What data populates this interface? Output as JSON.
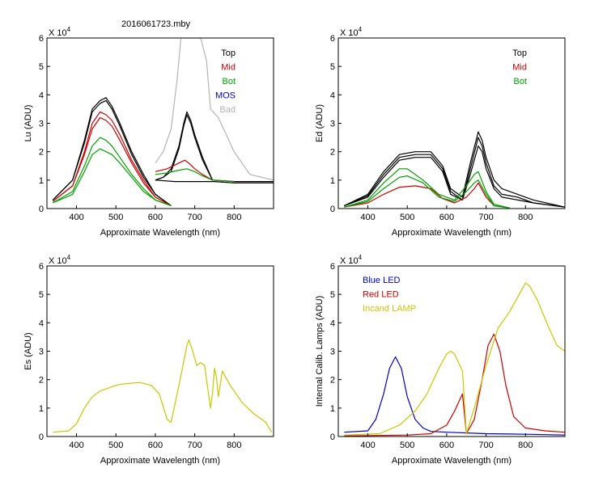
{
  "figure": {
    "title": "2016061723.mby"
  },
  "chart_data": [
    {
      "id": "lu",
      "type": "line",
      "title": "2016061723.mby",
      "xlabel": "Approximate Wavelength (nm)",
      "ylabel": "Lu (ADU)",
      "xlim": [
        325,
        900
      ],
      "ylim": [
        0,
        6
      ],
      "xticks": [
        400,
        500,
        600,
        700,
        800
      ],
      "yticks": [
        0,
        1,
        2,
        3,
        4,
        5,
        6
      ],
      "y_exponent": "X 10",
      "y_exponent_power": "4",
      "legend": [
        {
          "label": "Top",
          "color": "#000000"
        },
        {
          "label": "Mid",
          "color": "#cc0000"
        },
        {
          "label": "Bot",
          "color": "#00a000"
        },
        {
          "label": "MOS",
          "color": "#0000c0"
        },
        {
          "label": "Bad",
          "color": "#b4b4b4"
        }
      ],
      "series": [
        {
          "name": "Top 1",
          "color": "#000000",
          "x": [
            340,
            390,
            420,
            440,
            460,
            475,
            490,
            510,
            540,
            570,
            600,
            640
          ],
          "y": [
            0.3,
            1.0,
            2.4,
            3.5,
            3.8,
            3.9,
            3.6,
            3.0,
            2.0,
            1.2,
            0.5,
            0.1
          ]
        },
        {
          "name": "Top 2",
          "color": "#000000",
          "x": [
            340,
            390,
            420,
            440,
            460,
            475,
            490,
            510,
            540,
            570,
            600,
            640
          ],
          "y": [
            0.3,
            1.0,
            2.3,
            3.4,
            3.7,
            3.8,
            3.5,
            2.9,
            1.9,
            1.1,
            0.5,
            0.1
          ]
        },
        {
          "name": "Top 3",
          "color": "#000000",
          "x": [
            600,
            620,
            640,
            660,
            672,
            680,
            690,
            700,
            720,
            745,
            800,
            900
          ],
          "y": [
            1.0,
            1.1,
            1.4,
            2.2,
            3.0,
            3.4,
            3.1,
            2.6,
            1.8,
            1.0,
            0.95,
            0.95
          ]
        },
        {
          "name": "Top 4",
          "color": "#000000",
          "x": [
            600,
            620,
            640,
            660,
            672,
            680,
            690,
            700,
            720,
            745,
            800,
            900
          ],
          "y": [
            1.0,
            1.1,
            1.3,
            2.1,
            2.9,
            3.3,
            3.0,
            2.5,
            1.7,
            1.0,
            0.95,
            0.95
          ]
        },
        {
          "name": "Top 5",
          "color": "#000000",
          "x": [
            600,
            650,
            700,
            750,
            800,
            850,
            900
          ],
          "y": [
            1.0,
            0.95,
            0.95,
            0.95,
            0.9,
            0.9,
            0.9
          ]
        },
        {
          "name": "Mid 1",
          "color": "#cc0000",
          "x": [
            340,
            390,
            420,
            440,
            460,
            475,
            490,
            510,
            540,
            570,
            600,
            640
          ],
          "y": [
            0.25,
            0.8,
            2.0,
            3.0,
            3.4,
            3.3,
            3.1,
            2.6,
            1.7,
            1.0,
            0.4,
            0.1
          ]
        },
        {
          "name": "Mid 2",
          "color": "#cc0000",
          "x": [
            340,
            390,
            420,
            440,
            460,
            475,
            490,
            510,
            540,
            570,
            600,
            640
          ],
          "y": [
            0.25,
            0.8,
            1.9,
            2.8,
            3.2,
            3.1,
            2.9,
            2.4,
            1.6,
            0.9,
            0.4,
            0.1
          ]
        },
        {
          "name": "Mid 3",
          "color": "#cc0000",
          "x": [
            600,
            630,
            660,
            675,
            685,
            700,
            720,
            745,
            800
          ],
          "y": [
            1.3,
            1.4,
            1.6,
            1.7,
            1.6,
            1.4,
            1.2,
            1.0,
            0.95
          ]
        },
        {
          "name": "Bot 1",
          "color": "#00a000",
          "x": [
            340,
            390,
            420,
            440,
            460,
            475,
            490,
            510,
            540,
            570,
            600,
            640
          ],
          "y": [
            0.2,
            0.6,
            1.5,
            2.2,
            2.5,
            2.4,
            2.2,
            1.8,
            1.2,
            0.7,
            0.3,
            0.1
          ]
        },
        {
          "name": "Bot 2",
          "color": "#00a000",
          "x": [
            340,
            390,
            420,
            440,
            460,
            475,
            490,
            510,
            540,
            570,
            600,
            640
          ],
          "y": [
            0.2,
            0.5,
            1.3,
            1.9,
            2.1,
            2.0,
            1.9,
            1.6,
            1.1,
            0.6,
            0.3,
            0.1
          ]
        },
        {
          "name": "Bot 3",
          "color": "#00a000",
          "x": [
            600,
            630,
            660,
            680,
            700,
            720,
            745,
            800
          ],
          "y": [
            1.2,
            1.25,
            1.35,
            1.4,
            1.3,
            1.15,
            1.0,
            0.95
          ]
        },
        {
          "name": "Bad",
          "color": "#b4b4b4",
          "x": [
            600,
            620,
            640,
            655,
            665,
            675,
            685,
            700,
            715,
            730,
            740,
            760,
            780,
            800,
            840,
            900
          ],
          "y": [
            1.6,
            2.0,
            2.8,
            4.5,
            6.0,
            6.0,
            6.0,
            6.0,
            6.0,
            5.2,
            3.5,
            3.2,
            2.6,
            2.0,
            1.2,
            1.0
          ]
        }
      ]
    },
    {
      "id": "ed",
      "type": "line",
      "title": "",
      "xlabel": "Approximate Wavelength (nm)",
      "ylabel": "Ed  (ADU)",
      "xlim": [
        325,
        900
      ],
      "ylim": [
        0,
        6
      ],
      "xticks": [
        400,
        500,
        600,
        700,
        800
      ],
      "yticks": [
        0,
        1,
        2,
        3,
        4,
        5,
        6
      ],
      "y_exponent": "X 10",
      "y_exponent_power": "4",
      "legend": [
        {
          "label": "Top",
          "color": "#000000"
        },
        {
          "label": "Mid",
          "color": "#cc0000"
        },
        {
          "label": "Bot",
          "color": "#00a000"
        }
      ],
      "series": [
        {
          "name": "Top 1",
          "color": "#000000",
          "x": [
            340,
            400,
            440,
            480,
            520,
            560,
            590,
            610,
            640,
            660,
            680,
            690,
            700,
            720,
            740,
            780,
            820,
            900
          ],
          "y": [
            0.1,
            0.5,
            1.3,
            1.9,
            2.0,
            2.0,
            1.5,
            0.7,
            0.4,
            1.6,
            2.7,
            2.4,
            1.8,
            1.0,
            0.7,
            0.5,
            0.3,
            0.05
          ]
        },
        {
          "name": "Top 2",
          "color": "#000000",
          "x": [
            340,
            400,
            440,
            480,
            520,
            560,
            590,
            610,
            640,
            660,
            680,
            690,
            700,
            720,
            740,
            780,
            820,
            900
          ],
          "y": [
            0.1,
            0.45,
            1.2,
            1.8,
            1.9,
            1.9,
            1.4,
            0.6,
            0.3,
            1.4,
            2.5,
            2.2,
            1.6,
            0.8,
            0.5,
            0.4,
            0.2,
            0.05
          ]
        },
        {
          "name": "Top 3",
          "color": "#000000",
          "x": [
            340,
            400,
            440,
            480,
            520,
            560,
            590,
            610,
            640,
            660,
            680,
            690,
            700,
            720,
            740,
            780,
            820,
            900
          ],
          "y": [
            0.1,
            0.4,
            1.1,
            1.7,
            1.8,
            1.8,
            1.3,
            0.5,
            0.3,
            1.2,
            2.2,
            2.0,
            1.4,
            0.7,
            0.4,
            0.3,
            0.2,
            0.05
          ]
        },
        {
          "name": "Mid 1",
          "color": "#cc0000",
          "x": [
            340,
            400,
            440,
            480,
            520,
            560,
            590,
            620,
            650,
            670,
            680,
            700,
            720,
            760
          ],
          "y": [
            0.05,
            0.2,
            0.5,
            0.75,
            0.8,
            0.7,
            0.35,
            0.2,
            0.4,
            0.7,
            0.9,
            0.4,
            0.1,
            0.02
          ]
        },
        {
          "name": "Bot 1",
          "color": "#00a000",
          "x": [
            340,
            400,
            440,
            480,
            500,
            540,
            580,
            620,
            650,
            670,
            680,
            700,
            720,
            760
          ],
          "y": [
            0.05,
            0.3,
            0.9,
            1.4,
            1.4,
            1.0,
            0.5,
            0.3,
            0.8,
            1.2,
            1.3,
            0.6,
            0.15,
            0.02
          ]
        },
        {
          "name": "Bot 2",
          "color": "#00a000",
          "x": [
            340,
            400,
            440,
            480,
            500,
            540,
            580,
            620,
            650,
            670,
            680,
            700,
            720,
            760
          ],
          "y": [
            0.05,
            0.25,
            0.7,
            1.1,
            1.15,
            0.9,
            0.4,
            0.25,
            0.6,
            0.9,
            1.0,
            0.5,
            0.1,
            0.02
          ]
        }
      ]
    },
    {
      "id": "es",
      "type": "line",
      "title": "",
      "xlabel": "Approximate Wavelength (nm)",
      "ylabel": "Es  (ADU)",
      "xlim": [
        325,
        900
      ],
      "ylim": [
        0,
        6
      ],
      "xticks": [
        400,
        500,
        600,
        700,
        800
      ],
      "yticks": [
        0,
        1,
        2,
        3,
        4,
        5,
        6
      ],
      "y_exponent": "X 10",
      "y_exponent_power": "4",
      "legend": [],
      "series": [
        {
          "name": "Es",
          "color": "#c8c800",
          "x": [
            340,
            380,
            400,
            420,
            440,
            460,
            480,
            500,
            520,
            560,
            590,
            610,
            630,
            640,
            660,
            670,
            680,
            685,
            695,
            705,
            715,
            725,
            730,
            740,
            745,
            750,
            755,
            760,
            770,
            790,
            820,
            850,
            880,
            895
          ],
          "y": [
            0.15,
            0.2,
            0.45,
            1.0,
            1.4,
            1.6,
            1.7,
            1.8,
            1.85,
            1.9,
            1.8,
            1.5,
            0.6,
            0.5,
            1.8,
            2.5,
            3.2,
            3.4,
            3.0,
            2.5,
            2.6,
            2.5,
            2.0,
            1.0,
            1.5,
            2.4,
            2.1,
            1.4,
            2.3,
            1.8,
            1.2,
            0.8,
            0.5,
            0.15
          ]
        }
      ]
    },
    {
      "id": "lamps",
      "type": "line",
      "title": "",
      "xlabel": "Approximate Wavelength (nm)",
      "ylabel": "Internal Calib. Lamps (ADU)",
      "xlim": [
        325,
        900
      ],
      "ylim": [
        0,
        6
      ],
      "xticks": [
        400,
        500,
        600,
        700,
        800
      ],
      "yticks": [
        0,
        1,
        2,
        3,
        4,
        5,
        6
      ],
      "y_exponent": "X 10",
      "y_exponent_power": "4",
      "legend": [
        {
          "label": "Blue LED",
          "color": "#0000c0"
        },
        {
          "label": "Red LED",
          "color": "#cc0000"
        },
        {
          "label": "Incand LAMP",
          "color": "#c8c800"
        }
      ],
      "series": [
        {
          "name": "Blue LED",
          "color": "#0000c0",
          "x": [
            340,
            400,
            420,
            440,
            455,
            470,
            485,
            500,
            520,
            540,
            560,
            600,
            700,
            800,
            900
          ],
          "y": [
            0.15,
            0.2,
            0.6,
            1.5,
            2.4,
            2.8,
            2.4,
            1.4,
            0.6,
            0.3,
            0.18,
            0.15,
            0.1,
            0.08,
            0.05
          ]
        },
        {
          "name": "Red LED",
          "color": "#cc0000",
          "x": [
            340,
            500,
            560,
            600,
            620,
            640,
            650,
            670,
            690,
            705,
            720,
            735,
            750,
            770,
            800,
            850,
            900
          ],
          "y": [
            0.02,
            0.05,
            0.1,
            0.4,
            0.9,
            1.5,
            0.1,
            0.6,
            2.0,
            3.2,
            3.6,
            3.0,
            1.8,
            0.7,
            0.3,
            0.2,
            0.15
          ]
        },
        {
          "name": "Incand LAMP",
          "color": "#c8c800",
          "x": [
            340,
            430,
            480,
            520,
            550,
            580,
            600,
            610,
            620,
            640,
            650,
            670,
            700,
            730,
            760,
            780,
            800,
            810,
            830,
            860,
            880,
            900
          ],
          "y": [
            0.05,
            0.1,
            0.4,
            0.9,
            1.5,
            2.4,
            2.9,
            3.0,
            2.9,
            2.3,
            0.1,
            1.0,
            2.5,
            3.8,
            4.4,
            4.9,
            5.4,
            5.3,
            4.8,
            3.8,
            3.2,
            3.0
          ]
        }
      ]
    }
  ]
}
